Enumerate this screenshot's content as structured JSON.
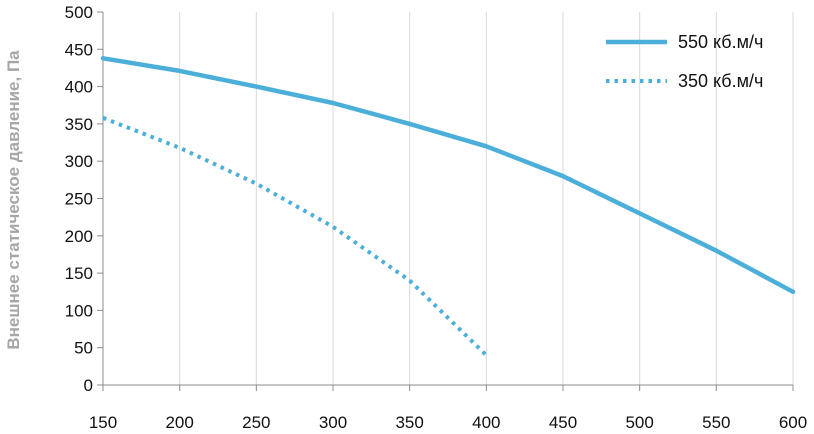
{
  "chart_data": {
    "type": "line",
    "ylabel": "Внешнее статическое давление, Па",
    "xlabel": "",
    "title": "",
    "xlim": [
      150,
      600
    ],
    "ylim": [
      0,
      500
    ],
    "x_ticks": [
      "150",
      "200",
      "250",
      "300",
      "350",
      "400",
      "450",
      "500",
      "550",
      "600"
    ],
    "y_ticks": [
      "0",
      "50",
      "100",
      "150",
      "200",
      "250",
      "300",
      "350",
      "400",
      "450",
      "500"
    ],
    "grid": "vertical",
    "legend_position": "top-right",
    "series": [
      {
        "name": "550 кб.м/ч",
        "style": "solid",
        "color": "#4bafd9",
        "x": [
          150,
          200,
          250,
          300,
          350,
          400,
          450,
          500,
          550,
          600
        ],
        "y": [
          438,
          421,
          400,
          378,
          350,
          320,
          280,
          230,
          180,
          125
        ]
      },
      {
        "name": "350 кб.м/ч",
        "style": "dotted",
        "color": "#4bafd9",
        "x": [
          150,
          200,
          250,
          300,
          350,
          400
        ],
        "y": [
          358,
          318,
          270,
          212,
          140,
          40
        ]
      }
    ]
  }
}
